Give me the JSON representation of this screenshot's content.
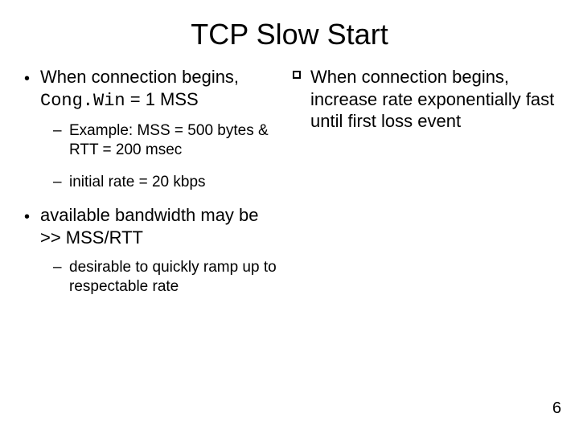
{
  "title": "TCP Slow Start",
  "left": {
    "b1_prefix": "When connection begins, ",
    "b1_mono": "Cong.Win",
    "b1_suffix": " = 1 MSS",
    "b1a": "Example: MSS = 500 bytes & RTT = 200 msec",
    "b1b": "initial rate = 20 kbps",
    "b2": "available bandwidth may be >> MSS/RTT",
    "b2a": "desirable to quickly ramp up to respectable rate"
  },
  "right": {
    "r1": "When connection begins, increase rate exponentially fast until first loss event"
  },
  "page_number": "6"
}
